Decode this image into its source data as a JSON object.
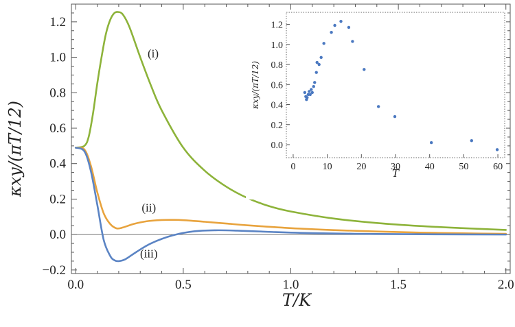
{
  "chart_data": {
    "type": "line",
    "xlabel": "T/K",
    "ylabel": "κxy/(πT/12)",
    "xlim": [
      -0.02,
      2.02
    ],
    "ylim": [
      -0.22,
      1.3
    ],
    "x_ticks": [
      0.0,
      0.5,
      1.0,
      1.5,
      2.0
    ],
    "x_tick_labels": [
      "0.0",
      "0.5",
      "1.0",
      "1.5",
      "2.0"
    ],
    "y_ticks": [
      -0.2,
      0.0,
      0.2,
      0.4,
      0.6,
      0.8,
      1.0,
      1.2
    ],
    "y_tick_labels": [
      "−0.2",
      "0.0",
      "0.2",
      "0.4",
      "0.6",
      "0.8",
      "1.0",
      "1.2"
    ],
    "zero_line": 0,
    "series": [
      {
        "name": "(i)",
        "color": "#8db33a",
        "points": [
          [
            0.0,
            0.49
          ],
          [
            0.04,
            0.5
          ],
          [
            0.06,
            0.55
          ],
          [
            0.08,
            0.68
          ],
          [
            0.1,
            0.85
          ],
          [
            0.12,
            1.0
          ],
          [
            0.14,
            1.13
          ],
          [
            0.16,
            1.21
          ],
          [
            0.18,
            1.25
          ],
          [
            0.2,
            1.255
          ],
          [
            0.22,
            1.24
          ],
          [
            0.25,
            1.17
          ],
          [
            0.3,
            1.0
          ],
          [
            0.35,
            0.84
          ],
          [
            0.4,
            0.7
          ],
          [
            0.5,
            0.49
          ],
          [
            0.6,
            0.36
          ],
          [
            0.7,
            0.27
          ],
          [
            0.8,
            0.205
          ],
          [
            0.9,
            0.16
          ],
          [
            1.0,
            0.13
          ],
          [
            1.2,
            0.09
          ],
          [
            1.4,
            0.065
          ],
          [
            1.6,
            0.048
          ],
          [
            1.8,
            0.036
          ],
          [
            2.0,
            0.026
          ]
        ]
      },
      {
        "name": "(ii)",
        "color": "#e8a33d",
        "points": [
          [
            0.0,
            0.49
          ],
          [
            0.04,
            0.48
          ],
          [
            0.07,
            0.39
          ],
          [
            0.1,
            0.24
          ],
          [
            0.13,
            0.12
          ],
          [
            0.16,
            0.06
          ],
          [
            0.19,
            0.035
          ],
          [
            0.22,
            0.04
          ],
          [
            0.27,
            0.06
          ],
          [
            0.33,
            0.075
          ],
          [
            0.4,
            0.082
          ],
          [
            0.45,
            0.083
          ],
          [
            0.5,
            0.081
          ],
          [
            0.6,
            0.072
          ],
          [
            0.7,
            0.062
          ],
          [
            0.8,
            0.052
          ],
          [
            1.0,
            0.036
          ],
          [
            1.2,
            0.025
          ],
          [
            1.4,
            0.017
          ],
          [
            1.6,
            0.011
          ],
          [
            1.8,
            0.007
          ],
          [
            2.0,
            0.004
          ]
        ]
      },
      {
        "name": "(iii)",
        "color": "#5b84c4",
        "points": [
          [
            0.0,
            0.49
          ],
          [
            0.04,
            0.47
          ],
          [
            0.07,
            0.36
          ],
          [
            0.1,
            0.17
          ],
          [
            0.13,
            -0.03
          ],
          [
            0.16,
            -0.12
          ],
          [
            0.18,
            -0.145
          ],
          [
            0.2,
            -0.15
          ],
          [
            0.23,
            -0.14
          ],
          [
            0.28,
            -0.1
          ],
          [
            0.35,
            -0.05
          ],
          [
            0.45,
            -0.005
          ],
          [
            0.55,
            0.018
          ],
          [
            0.65,
            0.024
          ],
          [
            0.75,
            0.022
          ],
          [
            0.9,
            0.015
          ],
          [
            1.1,
            0.008
          ],
          [
            1.4,
            0.003
          ],
          [
            1.7,
            0.001
          ],
          [
            2.0,
            0.0
          ]
        ]
      }
    ],
    "labels": [
      {
        "text": "(i)",
        "x": 0.36,
        "y": 1.0
      },
      {
        "text": "(ii)",
        "x": 0.34,
        "y": 0.13
      },
      {
        "text": "(iii)",
        "x": 0.34,
        "y": -0.13
      }
    ],
    "inset": {
      "type": "scatter",
      "xlabel": "T",
      "ylabel": "κxy/(πT/12)",
      "xlim": [
        -2,
        62
      ],
      "ylim": [
        -0.13,
        1.32
      ],
      "x_ticks": [
        0,
        10,
        20,
        30,
        40,
        50,
        60
      ],
      "x_tick_labels": [
        "0",
        "10",
        "20",
        "30",
        "40",
        "50",
        "60"
      ],
      "y_ticks": [
        0.0,
        0.2,
        0.4,
        0.6,
        0.8,
        1.0,
        1.2
      ],
      "y_tick_labels": [
        "0.0",
        "0.2",
        "0.4",
        "0.6",
        "0.8",
        "1.0",
        "1.2"
      ],
      "color": "#4a78c0",
      "points": [
        [
          3.4,
          0.52
        ],
        [
          3.7,
          0.48
        ],
        [
          3.9,
          0.45
        ],
        [
          4.1,
          0.47
        ],
        [
          4.4,
          0.5
        ],
        [
          4.7,
          0.53
        ],
        [
          5.0,
          0.5
        ],
        [
          5.3,
          0.55
        ],
        [
          5.6,
          0.52
        ],
        [
          6.0,
          0.58
        ],
        [
          6.3,
          0.62
        ],
        [
          6.8,
          0.72
        ],
        [
          7.0,
          0.82
        ],
        [
          7.6,
          0.8
        ],
        [
          8.2,
          0.87
        ],
        [
          9.0,
          1.01
        ],
        [
          11.2,
          1.12
        ],
        [
          12.2,
          1.19
        ],
        [
          14.0,
          1.23
        ],
        [
          16.3,
          1.17
        ],
        [
          17.4,
          1.03
        ],
        [
          20.8,
          0.75
        ],
        [
          25.0,
          0.38
        ],
        [
          29.8,
          0.28
        ],
        [
          40.5,
          0.02
        ],
        [
          52.3,
          0.04
        ],
        [
          59.8,
          -0.05
        ]
      ]
    }
  }
}
